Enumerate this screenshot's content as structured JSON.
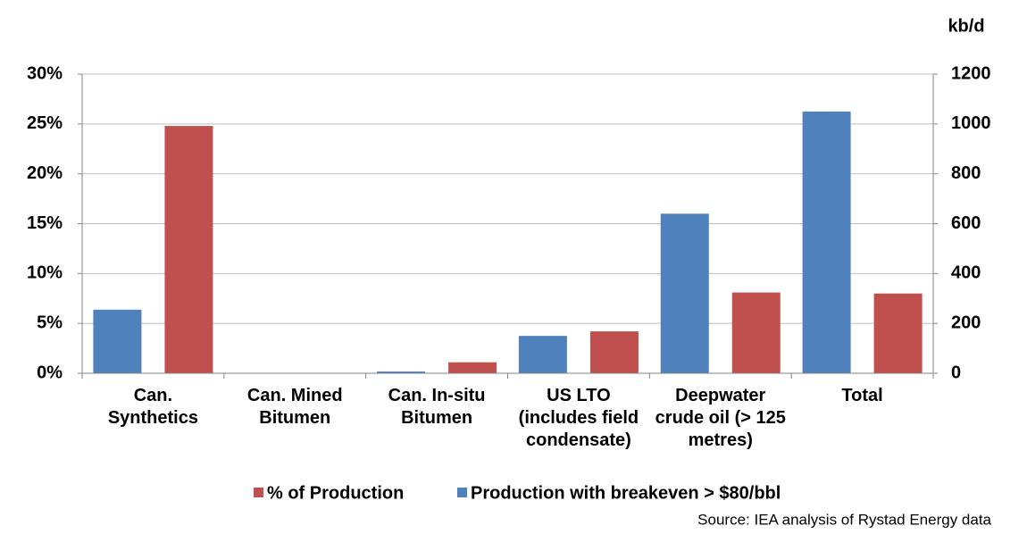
{
  "chart_data": {
    "type": "bar",
    "categories": [
      "Can. Synthetics",
      "Can. Mined Bitumen",
      "Can. In-situ Bitumen",
      "US LTO (includes field condensate)",
      "Deepwater crude oil (> 125 metres)",
      "Total"
    ],
    "series": [
      {
        "name": "% of Production",
        "color": "#c0504d",
        "values": [
          24.8,
          0,
          1.1,
          4.2,
          8.1,
          8.0
        ]
      },
      {
        "name": "Production with breakeven > $80/bbl",
        "color": "#4f81bd",
        "axis": "y2",
        "values": [
          255,
          0,
          7,
          150,
          640,
          1050
        ]
      }
    ],
    "ylim": [
      0,
      30
    ],
    "yticks": [
      {
        "value": 0,
        "label": "0%"
      },
      {
        "value": 5,
        "label": "5%"
      },
      {
        "value": 10,
        "label": "10%"
      },
      {
        "value": 15,
        "label": "15%"
      },
      {
        "value": 20,
        "label": "20%"
      },
      {
        "value": 25,
        "label": "25%"
      },
      {
        "value": 30,
        "label": "30%"
      }
    ],
    "y2lim": [
      0,
      1200
    ],
    "y2ticks": [
      0,
      200,
      400,
      600,
      800,
      1000,
      1200
    ],
    "y2_label": "kb/d",
    "grid": true,
    "source": "Source: IEA analysis of Rystad Energy data"
  }
}
